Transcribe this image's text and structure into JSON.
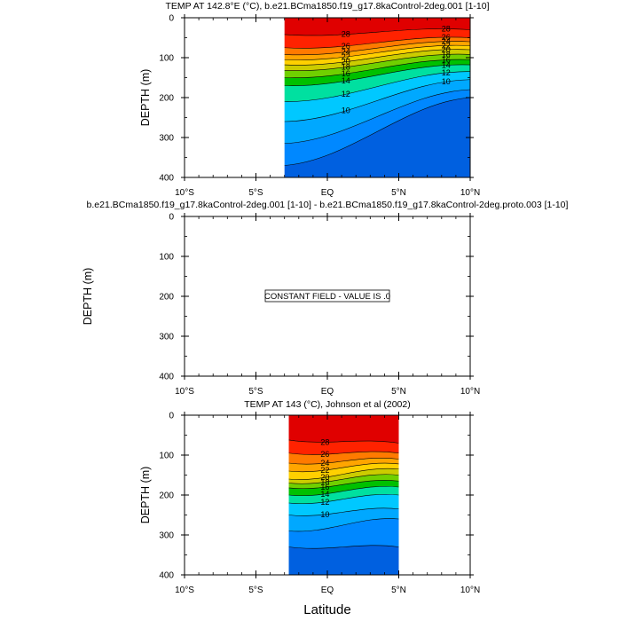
{
  "chart_data": [
    {
      "type": "contour",
      "title": "TEMP AT 142.8°E (°C), b.e21.BCma1850.f19_g17.8kaControl-2deg.001 [1-10]",
      "xlabel": "",
      "ylabel": "DEPTH (m)",
      "xlim": [
        -10,
        10
      ],
      "ylim": [
        400,
        0
      ],
      "x_ticks": [
        "10°S",
        "5°S",
        "EQ",
        "5°N",
        "10°N"
      ],
      "y_ticks": [
        "0",
        "100",
        "200",
        "300",
        "400"
      ],
      "data_extent": [
        -3,
        10
      ],
      "levels": [
        10,
        12,
        14,
        16,
        18,
        20,
        22,
        24,
        26,
        28
      ],
      "contour_labels": [
        "28",
        "26",
        "24",
        "22",
        "20",
        "18",
        "16",
        "14",
        "12",
        "10",
        "28",
        "26",
        "24",
        "22",
        "20",
        "18",
        "16",
        "14",
        "12",
        "10"
      ],
      "isotherm_depths_m": {
        "south_edge": [
          42,
          75,
          92,
          105,
          118,
          132,
          150,
          170,
          210,
          260,
          315,
          370
        ],
        "north_edge": [
          30,
          50,
          60,
          70,
          80,
          92,
          105,
          118,
          135,
          155,
          180,
          200
        ]
      }
    },
    {
      "type": "contour",
      "title": "b.e21.BCma1850.f19_g17.8kaControl-2deg.001 [1-10] - b.e21.BCma1850.f19_g17.8kaControl-2deg.proto.003 [1-10]",
      "xlabel": "",
      "ylabel": "DEPTH (m)",
      "xlim": [
        -10,
        10
      ],
      "ylim": [
        400,
        0
      ],
      "x_ticks": [
        "10°S",
        "5°S",
        "EQ",
        "5°N",
        "10°N"
      ],
      "y_ticks": [
        "0",
        "100",
        "200",
        "300",
        "400"
      ],
      "annotation": "CONSTANT FIELD - VALUE IS .0"
    },
    {
      "type": "contour",
      "title": "TEMP AT 143 (°C), Johnson et al (2002)",
      "xlabel": "Latitude",
      "ylabel": "DEPTH (m)",
      "xlim": [
        -10,
        10
      ],
      "ylim": [
        400,
        0
      ],
      "x_ticks": [
        "10°S",
        "5°S",
        "EQ",
        "5°N",
        "10°N"
      ],
      "y_ticks": [
        "0",
        "100",
        "200",
        "300",
        "400"
      ],
      "data_extent": [
        -2.7,
        5
      ],
      "levels": [
        10,
        12,
        14,
        16,
        18,
        20,
        22,
        24,
        26,
        28
      ],
      "contour_labels": [
        "28",
        "26",
        "24",
        "22",
        "20",
        "18",
        "16",
        "14",
        "12",
        "10"
      ],
      "isotherm_depths_m": {
        "south_edge": [
          62,
          95,
          120,
          140,
          160,
          170,
          182,
          200,
          220,
          250,
          290,
          330
        ],
        "north_edge": [
          70,
          95,
          110,
          122,
          135,
          150,
          165,
          180,
          200,
          235,
          260,
          330
        ]
      }
    }
  ],
  "colors": {
    "fills": [
      "#e00000",
      "#ff2200",
      "#ff7a00",
      "#ffa500",
      "#ffd000",
      "#cccc00",
      "#70d000",
      "#00c000",
      "#00e0a0",
      "#00c8ff",
      "#00a8ff",
      "#0088ff",
      "#0060e0",
      "#0030d0",
      "#5a00e0"
    ],
    "line": "#000000"
  }
}
